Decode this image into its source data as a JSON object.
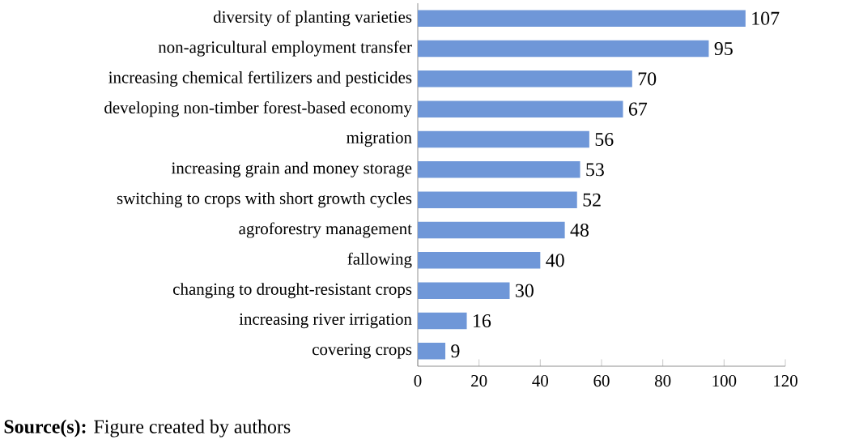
{
  "chart_data": {
    "type": "bar",
    "orientation": "horizontal",
    "categories": [
      "diversity of planting varieties",
      "non-agricultural employment transfer",
      "increasing chemical fertilizers and pesticides",
      "developing non-timber forest-based economy",
      "migration",
      "increasing grain and money storage",
      "switching to crops with short growth cycles",
      "agroforestry management",
      "fallowing",
      "changing to drought-resistant crops",
      "increasing river irrigation",
      "covering crops"
    ],
    "values": [
      107,
      95,
      70,
      67,
      56,
      53,
      52,
      48,
      40,
      30,
      16,
      9
    ],
    "color": "#6f97d8",
    "xlim": [
      0,
      120
    ],
    "xticks": [
      0,
      20,
      40,
      60,
      80,
      100,
      120
    ],
    "data_labels": true,
    "annotations": [
      "**Source(s):** Figure created by authors"
    ]
  }
}
